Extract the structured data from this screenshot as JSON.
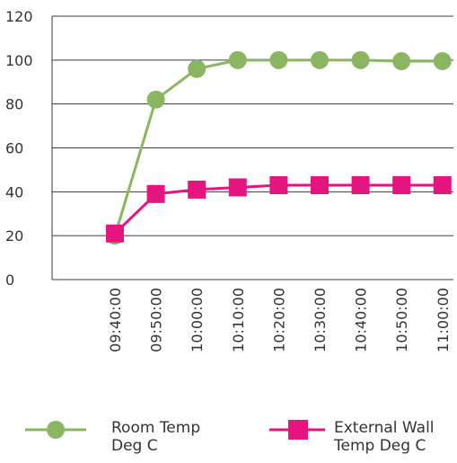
{
  "chart_data": {
    "type": "line",
    "categories": [
      "09:40:00",
      "09:50:00",
      "10:00:00",
      "10:10:00",
      "10:20:00",
      "10:30:00",
      "10:40:00",
      "10:50:00",
      "11:00:00"
    ],
    "series": [
      {
        "name": "Room Temp Deg C",
        "color": "#8ab661",
        "marker": "circle",
        "values": [
          20,
          82,
          96,
          100,
          100,
          100,
          100,
          99.5,
          99.5
        ]
      },
      {
        "name": "External Wall Temp Deg C",
        "color": "#e5147e",
        "marker": "square",
        "values": [
          21,
          39,
          41,
          42,
          43,
          43,
          43,
          43,
          43
        ]
      }
    ],
    "yticks": [
      "0",
      "20",
      "40",
      "60",
      "80",
      "100",
      "120"
    ],
    "ylim": [
      0,
      120
    ],
    "grid": true,
    "legend_position": "bottom"
  }
}
